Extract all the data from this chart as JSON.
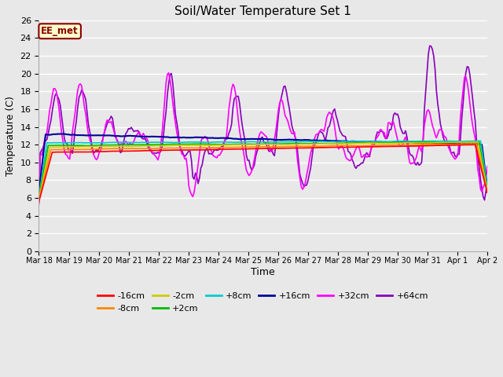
{
  "title": "Soil/Water Temperature Set 1",
  "xlabel": "Time",
  "ylabel": "Temperature (C)",
  "ylim": [
    0,
    26
  ],
  "yticks": [
    0,
    2,
    4,
    6,
    8,
    10,
    12,
    14,
    16,
    18,
    20,
    22,
    24,
    26
  ],
  "plot_bg_color": "#e8e8e8",
  "grid_color": "#ffffff",
  "annotation_text": "EE_met",
  "annotation_bg": "#ffffcc",
  "annotation_border": "#8b0000",
  "annotation_text_color": "#8b0000",
  "series_order": [
    "+64cm",
    "+32cm",
    "+16cm",
    "+8cm",
    "+2cm",
    "-2cm",
    "-8cm",
    "-16cm"
  ],
  "series": {
    "-16cm": {
      "color": "#ff0000",
      "lw": 1.2
    },
    "-8cm": {
      "color": "#ff8800",
      "lw": 1.2
    },
    "-2cm": {
      "color": "#cccc00",
      "lw": 1.2
    },
    "+2cm": {
      "color": "#00bb00",
      "lw": 1.2
    },
    "+8cm": {
      "color": "#00cccc",
      "lw": 1.2
    },
    "+16cm": {
      "color": "#000099",
      "lw": 1.5
    },
    "+32cm": {
      "color": "#ff00ff",
      "lw": 1.2
    },
    "+64cm": {
      "color": "#8800bb",
      "lw": 1.2
    }
  },
  "legend_order": [
    "-16cm",
    "-8cm",
    "-2cm",
    "+2cm",
    "+8cm",
    "+16cm",
    "+32cm",
    "+64cm"
  ],
  "xtick_labels": [
    "Mar 18",
    "Mar 19",
    "Mar 20",
    "Mar 21",
    "Mar 22",
    "Mar 23",
    "Mar 24",
    "Mar 25",
    "Mar 26",
    "Mar 27",
    "Mar 28",
    "Mar 29",
    "Mar 30",
    "Mar 31",
    "Apr 1",
    "Apr 2"
  ],
  "figwidth": 6.4,
  "figheight": 4.8,
  "dpi": 100
}
